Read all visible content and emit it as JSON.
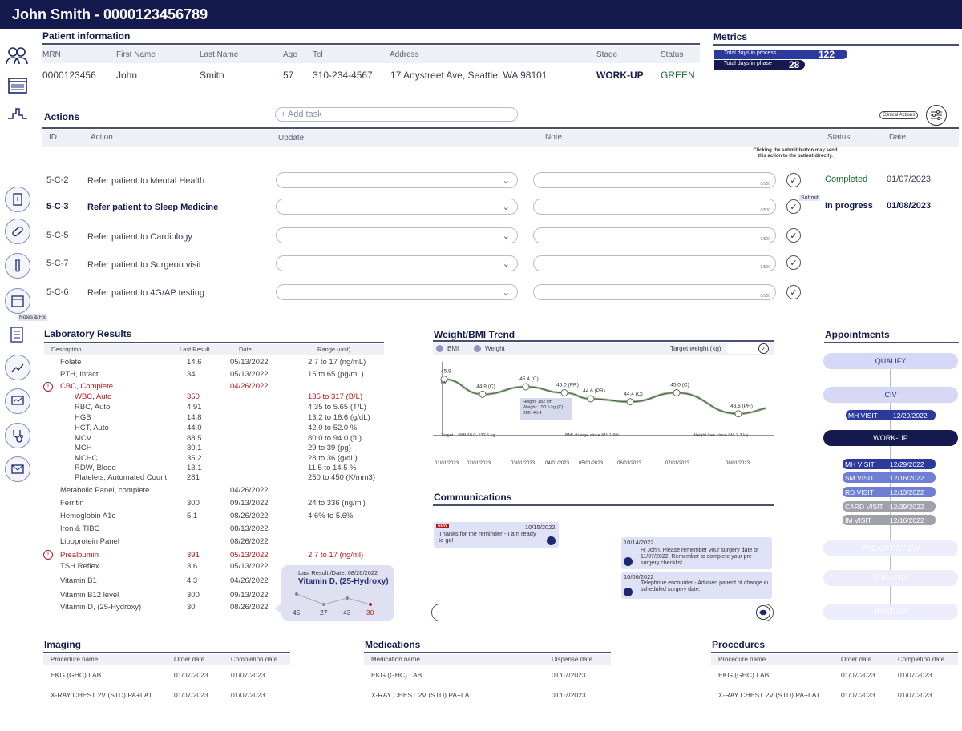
{
  "header": {
    "title": "John Smith - 0000123456789"
  },
  "patient": {
    "section_title": "Patient information",
    "columns": [
      "MRN",
      "First Name",
      "Last Name",
      "Age",
      "Tel",
      "Address",
      "Stage",
      "Status"
    ],
    "values": [
      "0000123456",
      "John",
      "Smith",
      "57",
      "310-234-4567",
      "17 Anystreet Ave, Seattle, WA 98101",
      "WORK-UP",
      "GREEN"
    ]
  },
  "metrics": {
    "title": "Metrics",
    "items": [
      {
        "label": "Total days in process",
        "value": "122",
        "fill": 0.8
      },
      {
        "label": "Total days in phase",
        "value": "28",
        "fill": 0.5
      }
    ]
  },
  "actions": {
    "title": "Actions",
    "add_task": "+ Add task",
    "clinical_actions": "Clinical Actions",
    "columns": [
      "ID",
      "Action",
      "Update",
      "Note",
      "Status",
      "Date"
    ],
    "submit_hint": "Clicking the submit button may send this action to the patient directly.",
    "note_counter": "0/500",
    "submit_label": "Submit",
    "rows": [
      {
        "id": "5-C-2",
        "action": "Refer patient to Mental Health",
        "status": "Completed",
        "date": "01/07/2023"
      },
      {
        "id": "5-C-3",
        "action": "Refer patient to Sleep Medicine",
        "status": "In progress",
        "date": "01/08/2023"
      },
      {
        "id": "5-C-5",
        "action": "Refer patient to Cardiology",
        "status": "",
        "date": ""
      },
      {
        "id": "5-C-7",
        "action": "Refer patient to Surgeon visit",
        "status": "",
        "date": ""
      },
      {
        "id": "5-C-6",
        "action": "Refer patient to 4G/AP testing",
        "status": "",
        "date": ""
      }
    ]
  },
  "sidebar": {
    "tooltip": "Notes & Hx"
  },
  "lab": {
    "title": "Laboratory Results",
    "columns": [
      "Description",
      "Last Result",
      "Date",
      "Range (unit)"
    ],
    "rows": [
      {
        "desc": "Folate",
        "result": "14.6",
        "date": "05/13/2022",
        "range": "2.7 to 17 (ng/mL)"
      },
      {
        "desc": "PTH, Intact",
        "result": "34",
        "date": "05/13/2022",
        "range": "15 to 65 (pg/mL)"
      },
      {
        "desc": "CBC, Complete",
        "result": "",
        "date": "04/26/2022",
        "range": ""
      },
      {
        "desc": "WBC, Auto",
        "result": "350",
        "date": "",
        "range": "135 to 317 (B/L)"
      },
      {
        "desc": "RBC, Auto",
        "result": "4.91",
        "date": "",
        "range": "4.35 to 5.65 (T/L)"
      },
      {
        "desc": "HGB",
        "result": "14.8",
        "date": "",
        "range": "13.2 to 16.6 (g/dL)"
      },
      {
        "desc": "HCT, Auto",
        "result": "44.0",
        "date": "",
        "range": "42.0 to 52.0 %"
      },
      {
        "desc": "MCV",
        "result": "88.5",
        "date": "",
        "range": "80.0 to 94.0 (fL)"
      },
      {
        "desc": "MCH",
        "result": "30.1",
        "date": "",
        "range": "29 to 39 (pg)"
      },
      {
        "desc": "MCHC",
        "result": "35.2",
        "date": "",
        "range": "28 to 36 (g/dL)"
      },
      {
        "desc": "RDW, Blood",
        "result": "13.1",
        "date": "",
        "range": "11.5 to 14.5 %"
      },
      {
        "desc": "Platelets, Automated Count",
        "result": "281",
        "date": "",
        "range": "250 to 450 (K/mm3)"
      },
      {
        "desc": "Metabolic Panel, complete",
        "result": "",
        "date": "04/26/2022",
        "range": ""
      },
      {
        "desc": "Ferritin",
        "result": "300",
        "date": "09/13/2022",
        "range": "24 to 336 (ng/ml)"
      },
      {
        "desc": "Hemoglobin A1c",
        "result": "5.1",
        "date": "08/26/2022",
        "range": "4.6% to 5.6%"
      },
      {
        "desc": "Iron & TIBC",
        "result": "",
        "date": "08/13/2022",
        "range": ""
      },
      {
        "desc": "Lipoprotein Panel",
        "result": "",
        "date": "08/26/2022",
        "range": ""
      },
      {
        "desc": "Prealbumin",
        "result": "391",
        "date": "05/13/2022",
        "range": "2.7 to 17 (ng/ml)"
      },
      {
        "desc": "TSH Reflex",
        "result": "3.6",
        "date": "05/13/2022",
        "range": ""
      },
      {
        "desc": "Vitamin B1",
        "result": "4.3",
        "date": "04/26/2022",
        "range": ""
      },
      {
        "desc": "Vitamin B12 level",
        "result": "300",
        "date": "09/13/2022",
        "range": ""
      },
      {
        "desc": "Vitamin D, (25-Hydroxy)",
        "result": "30",
        "date": "08/26/2022",
        "range": ""
      }
    ],
    "popup": {
      "caption": "Last Result /Date: 08/26/2022",
      "title": "Vitamin D, (25-Hydroxy)",
      "values": [
        "45",
        "27",
        "43",
        "30"
      ]
    }
  },
  "weight": {
    "title": "Weight/BMI Trend",
    "legend": [
      "BMI",
      "Weight"
    ],
    "target_label": "Target weight (kg)",
    "target_note": "Target – BMI 40.0, 132.5 kg",
    "bmi_change": "BMI change since IW: 1.9%",
    "weight_loss": "Weight loss since IW: 2.3 kg",
    "tooltip": [
      "Height: 182 cm",
      "Weight: 150.5 kg (C)",
      "BMI: 45.4"
    ],
    "first_label": "45.9",
    "first_sub": "IW"
  },
  "chart_data": {
    "type": "line",
    "x": [
      "01/01/2023",
      "02/01/2023",
      "03/01/2023",
      "04/01/2023",
      "05/01/2023",
      "06/01/2023",
      "07/01/2023",
      "08/01/2023"
    ],
    "points": [
      {
        "x": "01/01/2023",
        "value": 45.9,
        "label": "45.9"
      },
      {
        "x": "02/01/2023",
        "value": 44.9,
        "label": "44.9 (C)"
      },
      {
        "x": "03/01/2023",
        "value": 45.4,
        "label": "45.4 (C)"
      },
      {
        "x": "04/01/2023",
        "value": 45.0,
        "label": "45.0 (PR)"
      },
      {
        "x": "05/01/2023",
        "value": 44.6,
        "label": "44.6 (PR)"
      },
      {
        "x": "06/01/2023",
        "value": 44.4,
        "label": "44.4 (C)"
      },
      {
        "x": "07/01/2023",
        "value": 45.0,
        "label": "45.0 (C)"
      },
      {
        "x": "08/01/2023",
        "value": 43.6,
        "label": "43.6 (PR)"
      }
    ]
  },
  "communications": {
    "title": "Communications",
    "messages": [
      {
        "tag": "NEW",
        "date": "10/15/2022",
        "text": "Thanks for the reminder - I am ready to go!"
      },
      {
        "date": "10/14/2022",
        "text": "Hi John, Please remember your surgery date of 11/07/2022. Remember to complete your pre-surgery checklist"
      },
      {
        "date": "10/06/2022",
        "text": "Telephone encounter - Advised patient of change in scheduled surgery date."
      }
    ]
  },
  "appointments": {
    "title": "Appointments",
    "stages": [
      "QUALIFY",
      "CIV",
      "WORK-UP",
      "PRE-OP REVIEW",
      "SURGERY",
      "POST-OP"
    ],
    "civ_visit": {
      "label": "MH VISIT",
      "date": "12/29/2022"
    },
    "workup_visits": [
      {
        "label": "MH VISIT",
        "date": "12/29/2022",
        "color": "#2c3a9e"
      },
      {
        "label": "SM VISIT",
        "date": "12/16/2022",
        "color": "#6f7fd3"
      },
      {
        "label": "RD VISIT",
        "date": "12/13/2022",
        "color": "#6f7fd3"
      },
      {
        "label": "CARD VISIT",
        "date": "12/29/2022",
        "color": "#a0a2aa"
      },
      {
        "label": "IM VISIT",
        "date": "12/16/2022",
        "color": "#a0a2aa"
      }
    ]
  },
  "imaging": {
    "title": "Imaging",
    "columns": [
      "Procedure name",
      "Order date",
      "Completion date"
    ],
    "rows": [
      [
        "EKG (GHC) LAB",
        "01/07/2023",
        "01/07/2023"
      ],
      [
        "X-RAY CHEST 2V (STD) PA+LAT",
        "01/07/2023",
        "01/07/2023"
      ]
    ]
  },
  "medications": {
    "title": "Medications",
    "columns": [
      "Medication name",
      "Dispense date"
    ],
    "rows": [
      [
        "EKG (GHC) LAB",
        "01/07/2023"
      ],
      [
        "X-RAY CHEST 2V (STD) PA+LAT",
        "01/07/2023"
      ]
    ]
  },
  "procedures": {
    "title": "Procedures",
    "columns": [
      "Procedure name",
      "Order date",
      "Completion date"
    ],
    "rows": [
      [
        "EKG (GHC) LAB",
        "01/07/2023",
        "01/07/2023"
      ],
      [
        "X-RAY CHEST 2V (STD) PA+LAT",
        "01/07/2023",
        "01/07/2023"
      ]
    ]
  }
}
